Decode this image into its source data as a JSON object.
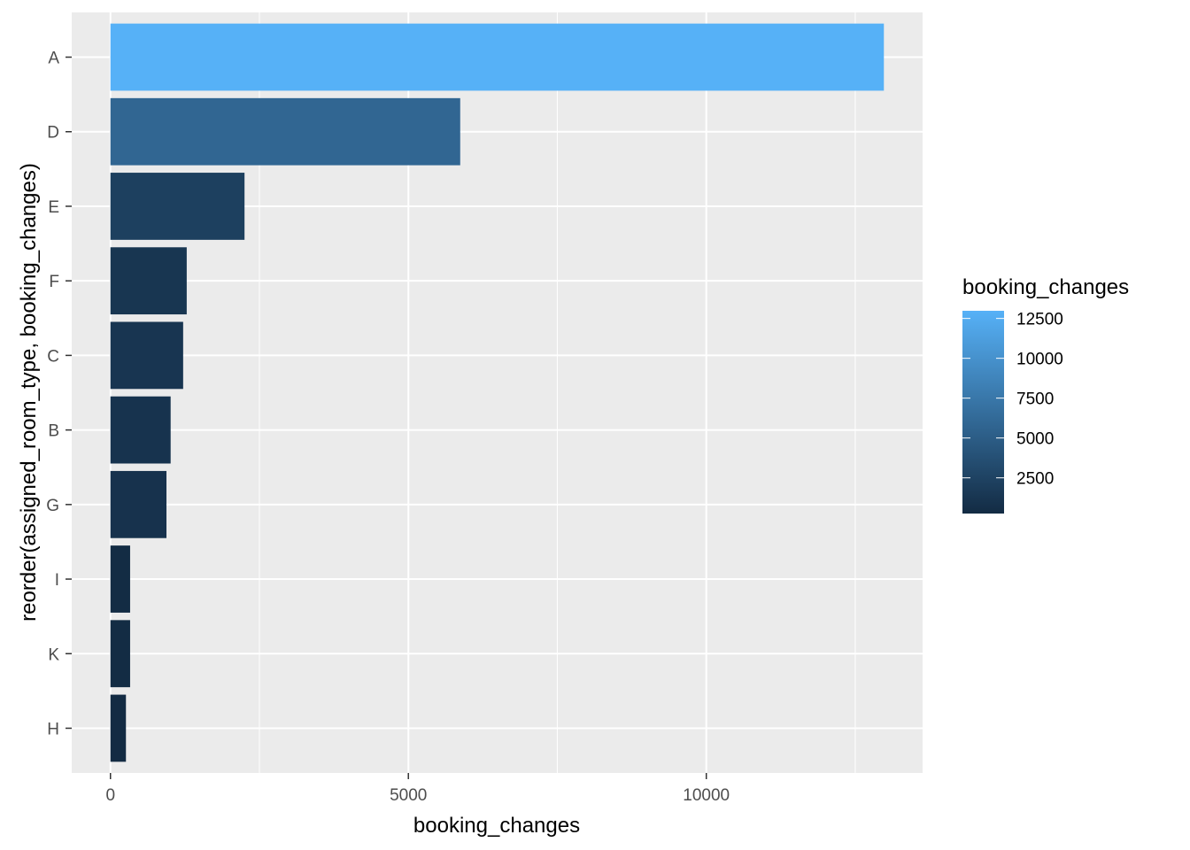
{
  "chart_data": {
    "type": "bar",
    "orientation": "horizontal",
    "categories": [
      "A",
      "D",
      "E",
      "F",
      "C",
      "B",
      "G",
      "I",
      "K",
      "H"
    ],
    "values": [
      12980,
      5870,
      2250,
      1280,
      1220,
      1010,
      940,
      330,
      330,
      260
    ],
    "xlabel": "booking_changes",
    "ylabel": "reorder(assigned_room_type, booking_changes)",
    "xlim": [
      -650,
      13630
    ],
    "x_ticks": [
      0,
      5000,
      10000
    ],
    "x_tick_labels": [
      "0",
      "5000",
      "10000"
    ],
    "x_minor_ticks": [
      2500,
      7500,
      12500
    ],
    "grid": true,
    "panel_background": "#ebebeb",
    "grid_color": "#ffffff",
    "legend": {
      "title": "booking_changes",
      "placement": "right",
      "type": "colorbar",
      "range": [
        260,
        12980
      ],
      "ticks": [
        2500,
        5000,
        7500,
        10000,
        12500
      ],
      "tick_labels": [
        "2500",
        "5000",
        "7500",
        "10000",
        "12500"
      ],
      "low_color": "#132b43",
      "high_color": "#56b1f7"
    }
  }
}
